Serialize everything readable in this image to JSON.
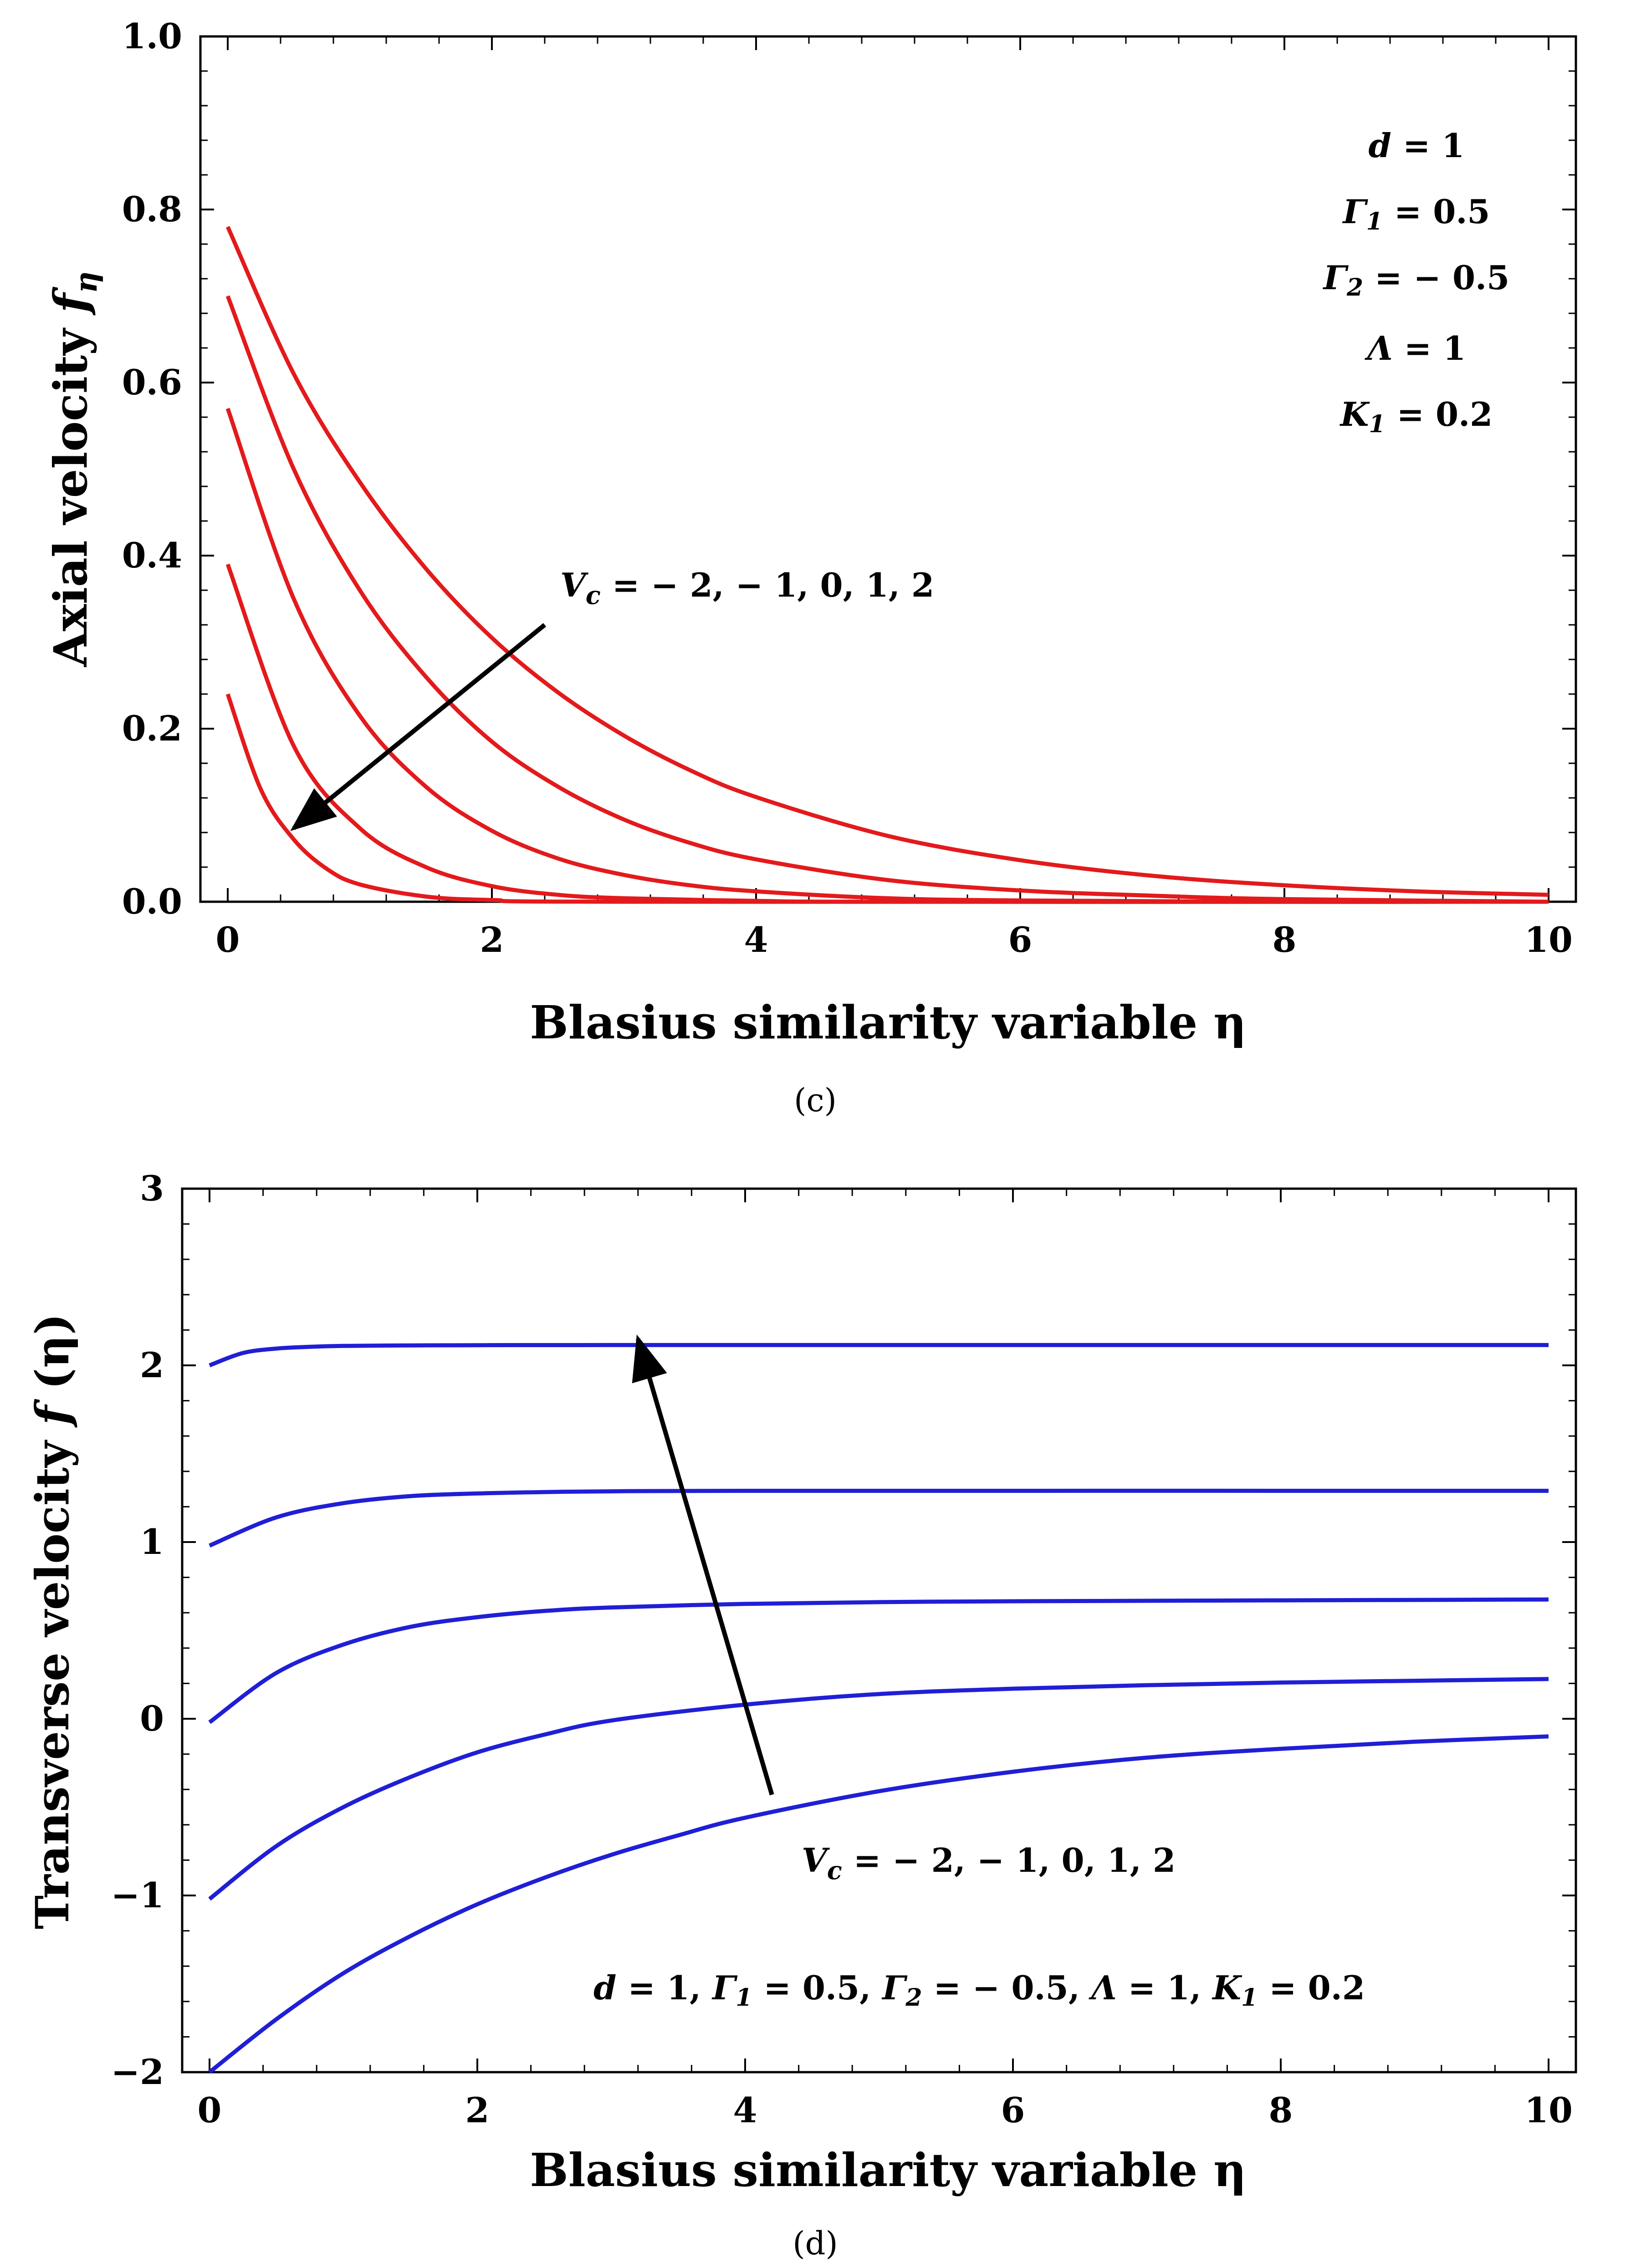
{
  "chart_data": [
    {
      "type": "line",
      "panel_label": "(c)",
      "xlabel": "Blasius similarity variable η",
      "ylabel": "Axial velocity f_η",
      "ylabel_main": "Axial velocity ",
      "ylabel_sym": "f",
      "ylabel_sub": "η",
      "xlim": [
        0,
        10
      ],
      "ylim": [
        0,
        1
      ],
      "xticks": [
        0,
        2,
        4,
        6,
        8,
        10
      ],
      "yticks": [
        0.0,
        0.2,
        0.4,
        0.6,
        0.8,
        1.0
      ],
      "ytick_labels": [
        "0.0",
        "0.2",
        "0.4",
        "0.6",
        "0.8",
        "1.0"
      ],
      "line_color": "#e31a1c",
      "parameter_label": "V_c = − 2, − 1, 0, 1, 2",
      "parameter_sym": "V",
      "parameter_sub": "c",
      "parameter_values": " = − 2, − 1, 0, 1, 2",
      "arrow": {
        "from": [
          2.4,
          0.32
        ],
        "to": [
          0.5,
          0.085
        ]
      },
      "params": [
        {
          "sym": "d",
          "sub": "",
          "val": " = 1"
        },
        {
          "sym": "Γ",
          "sub": "1",
          "val": " = 0.5"
        },
        {
          "sym": "Γ",
          "sub": "2",
          "val": " = − 0.5"
        },
        {
          "sym": "Λ",
          "sub": "",
          "val": " = 1"
        },
        {
          "sym": "K",
          "sub": "1",
          "val": " = 0.2"
        }
      ],
      "series": [
        {
          "name": "V_c = -2",
          "x": [
            0,
            0.5,
            1,
            1.5,
            2,
            2.5,
            3,
            3.5,
            4,
            5,
            6,
            7,
            8,
            9,
            10
          ],
          "y": [
            0.78,
            0.61,
            0.485,
            0.385,
            0.305,
            0.242,
            0.192,
            0.152,
            0.121,
            0.076,
            0.048,
            0.03,
            0.019,
            0.012,
            0.008
          ]
        },
        {
          "name": "V_c = -1",
          "x": [
            0,
            0.5,
            1,
            1.5,
            2,
            2.5,
            3,
            3.5,
            4,
            5,
            6,
            7,
            8,
            10
          ],
          "y": [
            0.7,
            0.5,
            0.36,
            0.26,
            0.185,
            0.133,
            0.095,
            0.068,
            0.049,
            0.025,
            0.013,
            0.007,
            0.003,
            0.0
          ]
        },
        {
          "name": "V_c = 0",
          "x": [
            0,
            0.5,
            1,
            1.5,
            2,
            2.5,
            3,
            3.5,
            4,
            5,
            6,
            8,
            10
          ],
          "y": [
            0.57,
            0.35,
            0.215,
            0.133,
            0.082,
            0.05,
            0.031,
            0.019,
            0.012,
            0.004,
            0.0015,
            0.0,
            0.0
          ]
        },
        {
          "name": "V_c = 1",
          "x": [
            0,
            0.5,
            1,
            1.5,
            2,
            2.5,
            3,
            4,
            5,
            10
          ],
          "y": [
            0.39,
            0.18,
            0.085,
            0.04,
            0.018,
            0.008,
            0.004,
            0.001,
            0.0,
            0.0
          ]
        },
        {
          "name": "V_c = 2",
          "x": [
            0,
            0.25,
            0.5,
            0.75,
            1,
            1.5,
            2,
            3,
            10
          ],
          "y": [
            0.24,
            0.13,
            0.072,
            0.038,
            0.02,
            0.006,
            0.002,
            0.0,
            0.0
          ]
        }
      ]
    },
    {
      "type": "line",
      "panel_label": "(d)",
      "xlabel": "Blasius similarity variable η",
      "ylabel": "Transverse  velocity f (η)",
      "ylabel_main": "Transverse  velocity ",
      "ylabel_sym": "f",
      "ylabel_tail": " (η)",
      "xlim": [
        0,
        10
      ],
      "ylim": [
        -2,
        3
      ],
      "xticks": [
        0,
        2,
        4,
        6,
        8,
        10
      ],
      "yticks": [
        -2,
        -1,
        0,
        1,
        2,
        3
      ],
      "ytick_labels": [
        "−2",
        "−1",
        "0",
        "1",
        "2",
        "3"
      ],
      "line_color": "#1f1fd6",
      "parameter_label": "V_c = − 2, − 1, 0, 1, 2",
      "parameter_sym": "V",
      "parameter_sub": "c",
      "parameter_values": " = − 2, − 1, 0, 1, 2",
      "arrow": {
        "from": [
          4.2,
          -0.43
        ],
        "to": [
          3.2,
          2.15
        ]
      },
      "params_inline": [
        {
          "sym": "d",
          "sub": "",
          "val": " = 1, "
        },
        {
          "sym": "Γ",
          "sub": "1",
          "val": " = 0.5, "
        },
        {
          "sym": "Γ",
          "sub": "2",
          "val": " = − 0.5,  "
        },
        {
          "sym": "Λ",
          "sub": "",
          "val": " = 1, "
        },
        {
          "sym": "K",
          "sub": "1",
          "val": " = 0.2"
        }
      ],
      "series": [
        {
          "name": "V_c = 2",
          "x": [
            0,
            0.25,
            0.5,
            0.75,
            1,
            1.5,
            2,
            3,
            10
          ],
          "y": [
            2.0,
            2.07,
            2.095,
            2.105,
            2.11,
            2.113,
            2.114,
            2.115,
            2.115
          ]
        },
        {
          "name": "V_c = 1",
          "x": [
            0,
            0.5,
            1,
            1.5,
            2,
            2.5,
            3,
            4,
            10
          ],
          "y": [
            0.98,
            1.14,
            1.22,
            1.26,
            1.275,
            1.283,
            1.287,
            1.29,
            1.29
          ]
        },
        {
          "name": "V_c = 0",
          "x": [
            0,
            0.5,
            1,
            1.5,
            2,
            2.5,
            3,
            4,
            5,
            6,
            8,
            10
          ],
          "y": [
            -0.02,
            0.26,
            0.42,
            0.52,
            0.575,
            0.61,
            0.63,
            0.65,
            0.66,
            0.665,
            0.67,
            0.675
          ]
        },
        {
          "name": "V_c = -1",
          "x": [
            0,
            0.5,
            1,
            1.5,
            2,
            2.5,
            3,
            4,
            5,
            6,
            7,
            8,
            9,
            10
          ],
          "y": [
            -1.02,
            -0.72,
            -0.5,
            -0.33,
            -0.19,
            -0.09,
            -0.01,
            0.08,
            0.14,
            0.17,
            0.19,
            0.205,
            0.215,
            0.225
          ]
        },
        {
          "name": "V_c = -2",
          "x": [
            0,
            0.5,
            1,
            1.5,
            2,
            2.5,
            3,
            3.5,
            4,
            5,
            6,
            7,
            8,
            9,
            10
          ],
          "y": [
            -2.0,
            -1.7,
            -1.44,
            -1.23,
            -1.05,
            -0.9,
            -0.77,
            -0.66,
            -0.56,
            -0.41,
            -0.3,
            -0.22,
            -0.17,
            -0.13,
            -0.1
          ]
        }
      ]
    }
  ]
}
